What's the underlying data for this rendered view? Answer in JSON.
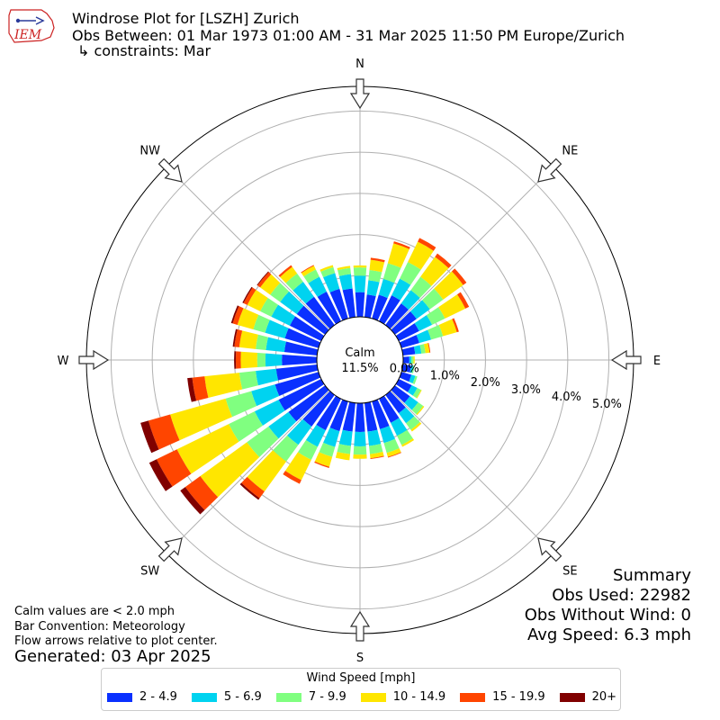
{
  "header": {
    "logo_text": "IEM",
    "title_line1": "Windrose Plot for [LSZH] Zurich",
    "title_line2": "Obs Between: 01 Mar 1973 01:00 AM - 31 Mar 2025 11:50 PM Europe/Zurich",
    "title_line3": "↳ constraints: Mar"
  },
  "notes": {
    "calm_note": "Calm values are < 2.0 mph",
    "bar_convention": "Bar Convention: Meteorology",
    "flow_note": "Flow arrows relative to plot center.",
    "generated": "Generated: 03 Apr 2025"
  },
  "summary": {
    "heading": "Summary",
    "obs_used": "Obs Used: 22982",
    "obs_without_wind": "Obs Without Wind: 0",
    "avg_speed": "Avg Speed: 6.3 mph"
  },
  "legend": {
    "title": "Wind Speed [mph]",
    "items": [
      {
        "label": "2 - 4.9",
        "color": "#0a30ff"
      },
      {
        "label": "5 - 6.9",
        "color": "#00d3f0"
      },
      {
        "label": "7 - 9.9",
        "color": "#80ff80"
      },
      {
        "label": "10 - 14.9",
        "color": "#ffe600"
      },
      {
        "label": "15 - 19.9",
        "color": "#ff4500"
      },
      {
        "label": "20+",
        "color": "#800000"
      }
    ]
  },
  "chart_data": {
    "type": "windrose",
    "calm_label": "Calm",
    "calm_value": "11.5%",
    "directions": [
      "N",
      "NE",
      "E",
      "SE",
      "S",
      "SW",
      "W",
      "NW"
    ],
    "radial_ticks": [
      "0.0%",
      "1.0%",
      "2.0%",
      "3.0%",
      "4.0%",
      "5.0%"
    ],
    "rmax": 5.6,
    "speed_bins": [
      "2 - 4.9",
      "5 - 6.9",
      "7 - 9.9",
      "10 - 14.9",
      "15 - 19.9",
      "20+"
    ],
    "bin_colors": [
      "#0a30ff",
      "#00d3f0",
      "#80ff80",
      "#ffe600",
      "#ff4500",
      "#800000"
    ],
    "sectors": [
      {
        "dir_deg": 0,
        "values": [
          0.6,
          0.4,
          0.2,
          0.05,
          0.0,
          0.0
        ]
      },
      {
        "dir_deg": 10,
        "values": [
          0.55,
          0.35,
          0.25,
          0.25,
          0.05,
          0.0
        ]
      },
      {
        "dir_deg": 20,
        "values": [
          0.6,
          0.4,
          0.4,
          0.5,
          0.05,
          0.0
        ]
      },
      {
        "dir_deg": 30,
        "values": [
          0.7,
          0.45,
          0.45,
          0.55,
          0.1,
          0.0
        ]
      },
      {
        "dir_deg": 40,
        "values": [
          0.65,
          0.4,
          0.4,
          0.6,
          0.1,
          0.0
        ]
      },
      {
        "dir_deg": 50,
        "values": [
          0.65,
          0.4,
          0.4,
          0.6,
          0.1,
          0.0
        ]
      },
      {
        "dir_deg": 60,
        "values": [
          0.55,
          0.35,
          0.35,
          0.55,
          0.1,
          0.0
        ]
      },
      {
        "dir_deg": 70,
        "values": [
          0.45,
          0.3,
          0.3,
          0.35,
          0.05,
          0.0
        ]
      },
      {
        "dir_deg": 80,
        "values": [
          0.3,
          0.15,
          0.1,
          0.1,
          0.02,
          0.0
        ]
      },
      {
        "dir_deg": 90,
        "values": [
          0.15,
          0.05,
          0.05,
          0.03,
          0.0,
          0.0
        ]
      },
      {
        "dir_deg": 100,
        "values": [
          0.2,
          0.05,
          0.03,
          0.0,
          0.0,
          0.0
        ]
      },
      {
        "dir_deg": 110,
        "values": [
          0.25,
          0.1,
          0.05,
          0.0,
          0.0,
          0.0
        ]
      },
      {
        "dir_deg": 120,
        "values": [
          0.35,
          0.15,
          0.1,
          0.02,
          0.0,
          0.0
        ]
      },
      {
        "dir_deg": 130,
        "values": [
          0.45,
          0.25,
          0.15,
          0.03,
          0.0,
          0.0
        ]
      },
      {
        "dir_deg": 140,
        "values": [
          0.55,
          0.3,
          0.2,
          0.05,
          0.0,
          0.0
        ]
      },
      {
        "dir_deg": 150,
        "values": [
          0.65,
          0.35,
          0.25,
          0.05,
          0.0,
          0.0
        ]
      },
      {
        "dir_deg": 160,
        "values": [
          0.7,
          0.35,
          0.25,
          0.1,
          0.02,
          0.0
        ]
      },
      {
        "dir_deg": 170,
        "values": [
          0.7,
          0.35,
          0.2,
          0.1,
          0.02,
          0.0
        ]
      },
      {
        "dir_deg": 180,
        "values": [
          0.7,
          0.35,
          0.2,
          0.1,
          0.0,
          0.0
        ]
      },
      {
        "dir_deg": 190,
        "values": [
          0.7,
          0.35,
          0.2,
          0.15,
          0.0,
          0.0
        ]
      },
      {
        "dir_deg": 200,
        "values": [
          0.75,
          0.4,
          0.25,
          0.25,
          0.03,
          0.0
        ]
      },
      {
        "dir_deg": 210,
        "values": [
          0.85,
          0.45,
          0.35,
          0.55,
          0.1,
          0.0
        ]
      },
      {
        "dir_deg": 220,
        "values": [
          0.95,
          0.55,
          0.5,
          0.9,
          0.2,
          0.05
        ]
      },
      {
        "dir_deg": 230,
        "values": [
          1.1,
          0.6,
          0.65,
          1.4,
          0.45,
          0.15
        ]
      },
      {
        "dir_deg": 240,
        "values": [
          1.15,
          0.65,
          0.7,
          1.4,
          0.55,
          0.2
        ]
      },
      {
        "dir_deg": 250,
        "values": [
          1.1,
          0.6,
          0.65,
          1.4,
          0.55,
          0.2
        ]
      },
      {
        "dir_deg": 260,
        "values": [
          1.0,
          0.5,
          0.4,
          0.85,
          0.3,
          0.12
        ]
      },
      {
        "dir_deg": 270,
        "values": [
          0.85,
          0.4,
          0.2,
          0.4,
          0.12,
          0.04
        ]
      },
      {
        "dir_deg": 280,
        "values": [
          0.8,
          0.45,
          0.25,
          0.4,
          0.12,
          0.04
        ]
      },
      {
        "dir_deg": 290,
        "values": [
          0.85,
          0.5,
          0.3,
          0.4,
          0.12,
          0.04
        ]
      },
      {
        "dir_deg": 300,
        "values": [
          0.85,
          0.5,
          0.3,
          0.35,
          0.1,
          0.03
        ]
      },
      {
        "dir_deg": 310,
        "values": [
          0.85,
          0.5,
          0.3,
          0.3,
          0.08,
          0.02
        ]
      },
      {
        "dir_deg": 320,
        "values": [
          0.85,
          0.45,
          0.25,
          0.2,
          0.05,
          0.0
        ]
      },
      {
        "dir_deg": 330,
        "values": [
          0.8,
          0.4,
          0.2,
          0.1,
          0.02,
          0.0
        ]
      },
      {
        "dir_deg": 340,
        "values": [
          0.75,
          0.4,
          0.15,
          0.05,
          0.0,
          0.0
        ]
      },
      {
        "dir_deg": 350,
        "values": [
          0.7,
          0.35,
          0.15,
          0.05,
          0.0,
          0.0
        ]
      }
    ]
  }
}
